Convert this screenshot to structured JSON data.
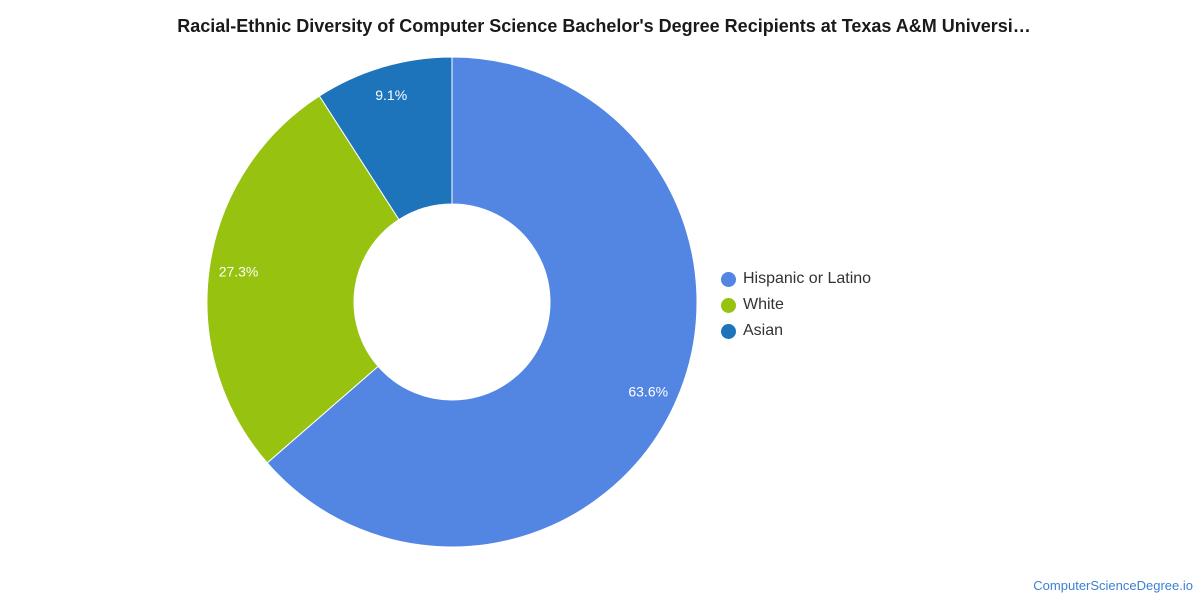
{
  "chart_data": {
    "type": "pie",
    "title": "Racial-Ethnic Diversity of Computer Science Bachelor's Degree Recipients at Texas A&M Universi…",
    "donut": true,
    "legend_position": "right",
    "categories": [
      "Hispanic or Latino",
      "White",
      "Asian"
    ],
    "values": [
      63.6,
      27.3,
      9.1
    ],
    "labels": [
      "63.6%",
      "27.3%",
      "9.1%"
    ],
    "colors": [
      "#5385e3",
      "#97c20f",
      "#1d74bb"
    ]
  },
  "watermark": "ComputerScienceDegree.io"
}
